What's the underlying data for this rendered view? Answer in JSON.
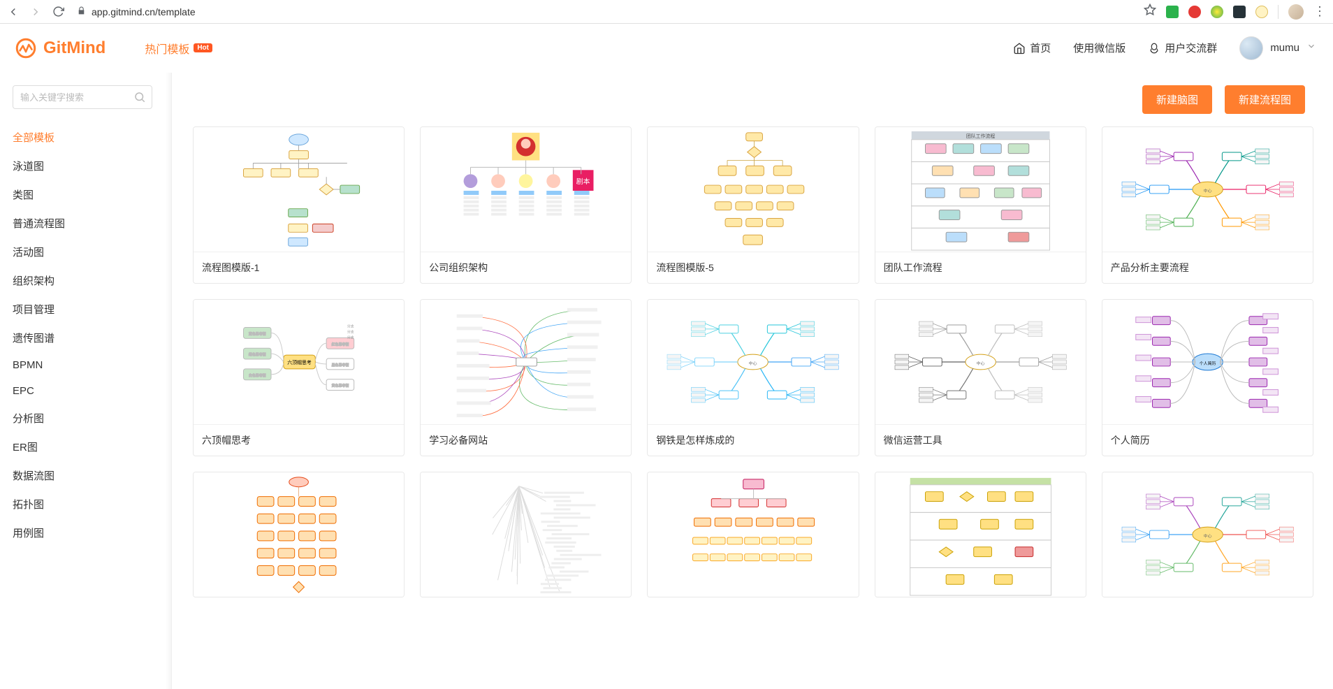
{
  "browser": {
    "url": "app.gitmind.cn/template",
    "extensions": [
      {
        "name": "star",
        "type": "star"
      },
      {
        "name": "ext-green",
        "color": "#2bb24c"
      },
      {
        "name": "ext-red",
        "color": "#e53935"
      },
      {
        "name": "ext-yellow",
        "color": "#ffc107"
      },
      {
        "name": "ext-dark",
        "color": "#263238"
      },
      {
        "name": "ext-oval",
        "color": "#ffd54f"
      }
    ]
  },
  "header": {
    "brand": "GitMind",
    "hot_label": "热门模板",
    "hot_badge": "Hot",
    "nav_home": "首页",
    "nav_wechat": "使用微信版",
    "nav_qq_group": "用户交流群",
    "username": "mumu"
  },
  "sidebar": {
    "search_placeholder": "输入关键字搜索",
    "categories": [
      {
        "label": "全部模板",
        "active": true
      },
      {
        "label": "泳道图",
        "active": false
      },
      {
        "label": "类图",
        "active": false
      },
      {
        "label": "普通流程图",
        "active": false
      },
      {
        "label": "活动图",
        "active": false
      },
      {
        "label": "组织架构",
        "active": false
      },
      {
        "label": "项目管理",
        "active": false
      },
      {
        "label": "遗传图谱",
        "active": false
      },
      {
        "label": "BPMN",
        "active": false
      },
      {
        "label": "EPC",
        "active": false
      },
      {
        "label": "分析图",
        "active": false
      },
      {
        "label": "ER图",
        "active": false
      },
      {
        "label": "数据流图",
        "active": false
      },
      {
        "label": "拓扑图",
        "active": false
      },
      {
        "label": "用例图",
        "active": false
      }
    ]
  },
  "actions": {
    "new_mindmap": "新建脑图",
    "new_flowchart": "新建流程图"
  },
  "templates": [
    {
      "title": "流程图模版-1",
      "thumb": "flow1"
    },
    {
      "title": "公司组织架构",
      "thumb": "org"
    },
    {
      "title": "流程图模版-5",
      "thumb": "flow5"
    },
    {
      "title": "团队工作流程",
      "thumb": "swimlane"
    },
    {
      "title": "产品分析主要流程",
      "thumb": "mindmap-color"
    },
    {
      "title": "六顶帽思考",
      "thumb": "sixhat"
    },
    {
      "title": "学习必备网站",
      "thumb": "study"
    },
    {
      "title": "钢铁是怎样炼成的",
      "thumb": "mindmap-blue"
    },
    {
      "title": "微信运营工具",
      "thumb": "mindmap-gray"
    },
    {
      "title": "个人简历",
      "thumb": "resume"
    },
    {
      "title": "",
      "thumb": "flow-orange"
    },
    {
      "title": "",
      "thumb": "tree-thin"
    },
    {
      "title": "",
      "thumb": "orgchart"
    },
    {
      "title": "",
      "thumb": "swimlane2"
    },
    {
      "title": "",
      "thumb": "mindmap-color2"
    }
  ],
  "colors": {
    "accent": "#ff7e2e",
    "border": "#e8e8e8",
    "text": "#333333",
    "muted": "#bbbbbb"
  }
}
